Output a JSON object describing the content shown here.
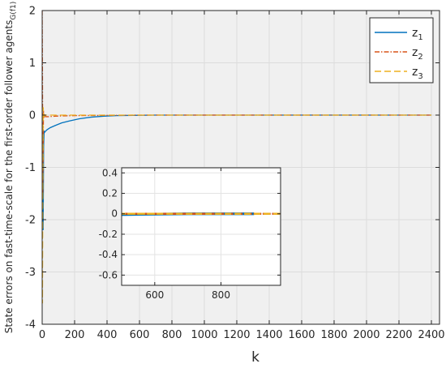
{
  "chart_data": {
    "type": "line",
    "xlabel": "k",
    "ylabel": "State errors on fast-time-scale for the first-order follower agents",
    "ylabel_subscript": "G(f1)",
    "xlim": [
      0,
      2450
    ],
    "ylim": [
      -4,
      2
    ],
    "x_ticks": [
      0,
      200,
      400,
      600,
      800,
      1000,
      1200,
      1400,
      1600,
      1800,
      2000,
      2200,
      2400
    ],
    "y_ticks": [
      2,
      1,
      0,
      -1,
      -2,
      -3,
      -4
    ],
    "grid": true,
    "legend_position": "top-right",
    "series": [
      {
        "name": "z",
        "name_subscript": "1",
        "color": "#0072BD",
        "style": "solid",
        "x": [
          0,
          3,
          6,
          9,
          12,
          15,
          20,
          30,
          50,
          80,
          120,
          170,
          230,
          300,
          380,
          460,
          560,
          700,
          900,
          1200,
          1600,
          2000,
          2400
        ],
        "y": [
          0.1,
          -1.5,
          -2.2,
          -0.6,
          -0.3,
          -0.33,
          -0.31,
          -0.28,
          -0.24,
          -0.2,
          -0.15,
          -0.11,
          -0.07,
          -0.04,
          -0.02,
          -0.01,
          -0.005,
          0,
          0,
          0,
          0,
          0,
          0
        ]
      },
      {
        "name": "z",
        "name_subscript": "2",
        "color": "#D95319",
        "style": "dash-dot",
        "x": [
          0,
          2,
          4,
          6,
          8,
          10,
          14,
          20,
          40,
          80,
          200,
          600,
          1200,
          1800,
          2400
        ],
        "y": [
          2.0,
          0.8,
          -1.5,
          -0.8,
          0.1,
          -0.05,
          0.02,
          -0.03,
          -0.03,
          -0.02,
          -0.01,
          0,
          0,
          0,
          0
        ]
      },
      {
        "name": "z",
        "name_subscript": "3",
        "color": "#EDB120",
        "style": "dashed",
        "x": [
          0,
          2,
          4,
          6,
          8,
          10,
          14,
          20,
          40,
          80,
          200,
          600,
          1200,
          1800,
          2400
        ],
        "y": [
          -0.2,
          -3.6,
          -1.2,
          0.15,
          0.08,
          0.0,
          -0.02,
          0.0,
          0.0,
          0.0,
          0,
          0,
          0,
          0,
          0
        ]
      }
    ],
    "inset": {
      "xlim": [
        500,
        980
      ],
      "ylim": [
        -0.7,
        0.45
      ],
      "x_ticks": [
        600,
        800
      ],
      "y_ticks": [
        0.4,
        0.2,
        0,
        -0.2,
        -0.4,
        -0.6
      ],
      "grid": true
    }
  }
}
